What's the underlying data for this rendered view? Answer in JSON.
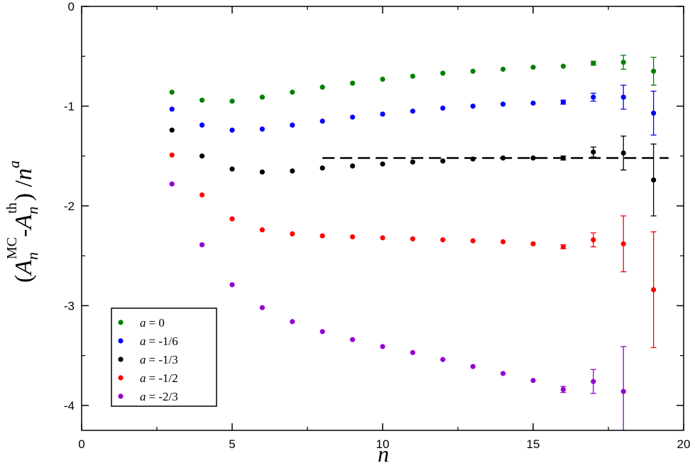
{
  "chart_data": {
    "type": "scatter",
    "title": "",
    "xlabel": "n",
    "ylabel_parts": {
      "open": "(",
      "a1": "A",
      "a1_sub": "n",
      "a1_sup": "MC",
      "minus": "-",
      "a2": "A",
      "a2_sub": "n",
      "a2_sup": "th",
      "close": ") /",
      "n": "n",
      "n_sup": "a"
    },
    "xlim": [
      0,
      20
    ],
    "ylim": [
      -4.25,
      0
    ],
    "xticks": [
      0,
      5,
      10,
      15,
      20
    ],
    "xtick_labels": [
      "0",
      "5",
      "10",
      "15",
      "20"
    ],
    "yticks": [
      0,
      -1,
      -2,
      -3,
      -4
    ],
    "ytick_labels": [
      "0",
      "-1",
      "-2",
      "-3",
      "-4"
    ],
    "grid": false,
    "legend_position": "bottom-left",
    "series": [
      {
        "name": "a =   0",
        "legend_var": "a",
        "legend_value": "=   0",
        "color": "#008000",
        "x": [
          3,
          4,
          5,
          6,
          7,
          8,
          9,
          10,
          11,
          12,
          13,
          14,
          15,
          16,
          17,
          18,
          19
        ],
        "y": [
          -0.86,
          -0.94,
          -0.95,
          -0.91,
          -0.86,
          -0.81,
          -0.77,
          -0.73,
          -0.7,
          -0.67,
          -0.65,
          -0.63,
          -0.61,
          -0.6,
          -0.57,
          -0.56,
          -0.65
        ],
        "err": [
          0,
          0,
          0,
          0,
          0,
          0,
          0,
          0,
          0,
          0,
          0,
          0,
          0,
          0,
          0.02,
          0.07,
          0.14
        ]
      },
      {
        "name": "a = -1/6",
        "legend_var": "a",
        "legend_value": "= -1/6",
        "color": "#0000ff",
        "x": [
          3,
          4,
          5,
          6,
          7,
          8,
          9,
          10,
          11,
          12,
          13,
          14,
          15,
          16,
          17,
          18,
          19
        ],
        "y": [
          -1.03,
          -1.19,
          -1.24,
          -1.23,
          -1.19,
          -1.15,
          -1.11,
          -1.08,
          -1.05,
          -1.02,
          -1.0,
          -0.98,
          -0.97,
          -0.96,
          -0.91,
          -0.91,
          -1.07
        ],
        "err": [
          0,
          0,
          0,
          0,
          0,
          0,
          0,
          0,
          0,
          0,
          0,
          0,
          0,
          0.02,
          0.04,
          0.12,
          0.22
        ]
      },
      {
        "name": "a = -1/3",
        "legend_var": "a",
        "legend_value": "= -1/3",
        "color": "#000000",
        "x": [
          3,
          4,
          5,
          6,
          7,
          8,
          9,
          10,
          11,
          12,
          13,
          14,
          15,
          16,
          17,
          18,
          19
        ],
        "y": [
          -1.24,
          -1.5,
          -1.63,
          -1.66,
          -1.65,
          -1.62,
          -1.6,
          -1.58,
          -1.56,
          -1.55,
          -1.53,
          -1.52,
          -1.52,
          -1.52,
          -1.46,
          -1.47,
          -1.74
        ],
        "err": [
          0,
          0,
          0,
          0,
          0,
          0,
          0,
          0,
          0,
          0,
          0,
          0,
          0,
          0.02,
          0.05,
          0.17,
          0.36
        ]
      },
      {
        "name": "a = -1/2",
        "legend_var": "a",
        "legend_value": "= -1/2",
        "color": "#ff0000",
        "x": [
          3,
          4,
          5,
          6,
          7,
          8,
          9,
          10,
          11,
          12,
          13,
          14,
          15,
          16,
          17,
          18,
          19
        ],
        "y": [
          -1.49,
          -1.89,
          -2.13,
          -2.24,
          -2.28,
          -2.3,
          -2.31,
          -2.32,
          -2.33,
          -2.34,
          -2.35,
          -2.36,
          -2.38,
          -2.41,
          -2.34,
          -2.38,
          -2.84
        ],
        "err": [
          0,
          0,
          0,
          0,
          0,
          0,
          0,
          0,
          0,
          0,
          0,
          0,
          0,
          0.02,
          0.07,
          0.28,
          0.58
        ]
      },
      {
        "name": "a = -2/3",
        "legend_var": "a",
        "legend_value": "= -2/3",
        "color": "#9400d3",
        "x": [
          3,
          4,
          5,
          6,
          7,
          8,
          9,
          10,
          11,
          12,
          13,
          14,
          15,
          16,
          17,
          18
        ],
        "y": [
          -1.78,
          -2.39,
          -2.79,
          -3.02,
          -3.16,
          -3.26,
          -3.34,
          -3.41,
          -3.47,
          -3.54,
          -3.61,
          -3.68,
          -3.75,
          -3.84,
          -3.76,
          -3.86
        ],
        "err": [
          0,
          0,
          0,
          0,
          0,
          0,
          0,
          0,
          0,
          0,
          0,
          0,
          0,
          0.03,
          0.12,
          0.45
        ]
      }
    ],
    "reference_line": {
      "y": -1.52,
      "x_range": [
        8,
        19.5
      ],
      "style": "dashed",
      "color": "#000000"
    }
  }
}
